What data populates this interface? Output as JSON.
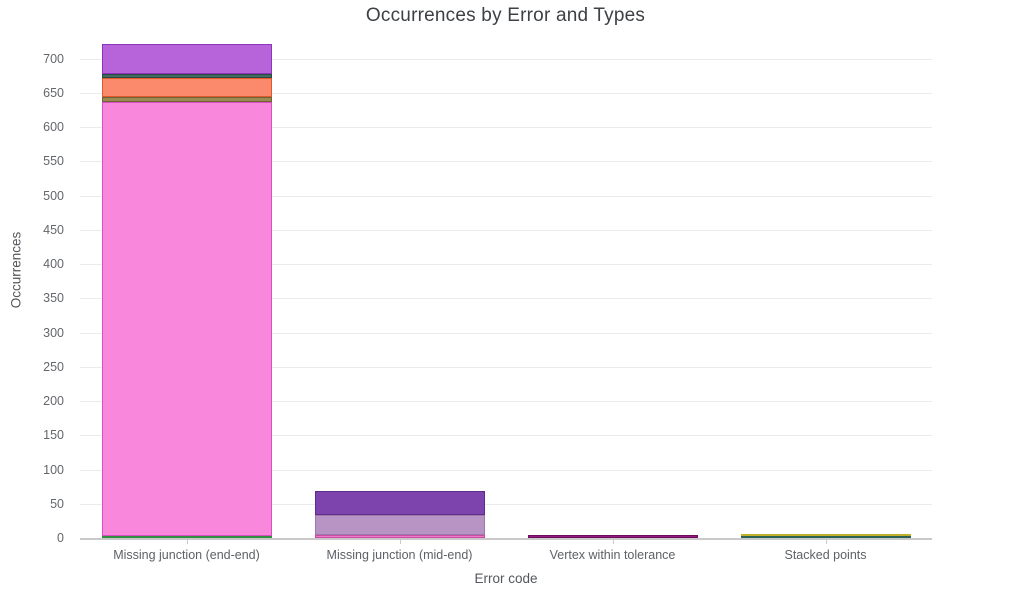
{
  "chart_data": {
    "type": "bar",
    "stacked": true,
    "title": "Occurrences by Error and Types",
    "xlabel": "Error code",
    "ylabel": "Occurrences",
    "ylim": [
      0,
      727
    ],
    "yticks": [
      0,
      50,
      100,
      150,
      200,
      250,
      300,
      350,
      400,
      450,
      500,
      550,
      600,
      650,
      700
    ],
    "grid": "horizontal",
    "legend": "none",
    "categories": [
      "Missing junction (end-end)",
      "Missing junction (mid-end)",
      "Vertex within tolerance",
      "Stacked points"
    ],
    "bars": [
      {
        "category": "Missing junction (end-end)",
        "total": 721,
        "segments": [
          {
            "value": 2,
            "fill": "#57b55f",
            "stroke": "#2f8f3f"
          },
          {
            "value": 634,
            "fill": "#f987dc",
            "stroke": "#d44fc0"
          },
          {
            "value": 7,
            "fill": "#9c8a50",
            "stroke": "#6f6234"
          },
          {
            "value": 29,
            "fill": "#fa8a6b",
            "stroke": "#dd5a31"
          },
          {
            "value": 5,
            "fill": "#416a60",
            "stroke": "#2b4a41"
          },
          {
            "value": 44,
            "fill": "#b763da",
            "stroke": "#8d35bb"
          }
        ]
      },
      {
        "category": "Missing junction (mid-end)",
        "total": 69,
        "segments": [
          {
            "value": 4,
            "fill": "#ee7bc8",
            "stroke": "#c94da4"
          },
          {
            "value": 29,
            "fill": "#b794c4",
            "stroke": "#9b7aa8"
          },
          {
            "value": 36,
            "fill": "#7d44ad",
            "stroke": "#5e2d8a"
          }
        ]
      },
      {
        "category": "Vertex within tolerance",
        "total": 5,
        "segments": [
          {
            "value": 5,
            "fill": "#93187f",
            "stroke": "#6b0e5c"
          }
        ]
      },
      {
        "category": "Stacked points",
        "total": 4,
        "segments": [
          {
            "value": 1,
            "fill": "#3e8578",
            "stroke": "#2c6156"
          },
          {
            "value": 3,
            "fill": "#e6d54b",
            "stroke": "#c2b02a"
          }
        ]
      }
    ],
    "colors": {
      "background": "#ffffff",
      "gridline": "#ebebeb",
      "axis_line": "#c9c9c9",
      "tick_label": "#63666b",
      "axis_title": "#54575c",
      "title": "#3d4045"
    }
  }
}
